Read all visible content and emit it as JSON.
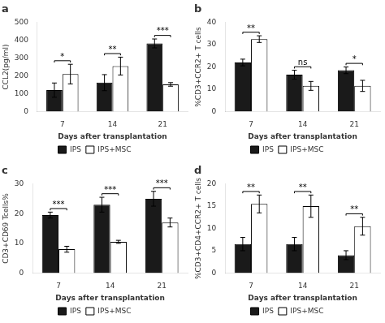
{
  "chart_data": [
    {
      "type": "bar",
      "title": "a",
      "xlabel": "Days after transplantation",
      "ylabel": "CCL2(pg/ml)",
      "categories": [
        "7",
        "14",
        "21"
      ],
      "series": [
        {
          "name": "IPS",
          "color": "#1a1a1a",
          "values": [
            120,
            162,
            382
          ],
          "errors": [
            40,
            45,
            25
          ]
        },
        {
          "name": "IPS+MSC",
          "color": "#ffffff",
          "values": [
            210,
            255,
            152
          ],
          "errors": [
            55,
            50,
            10
          ]
        }
      ],
      "annotations": [
        "*",
        "**",
        "***"
      ],
      "ylim": [
        0,
        500
      ],
      "yticks": [
        0,
        100,
        200,
        300,
        400,
        500
      ],
      "grid": false,
      "legend": "bottom"
    },
    {
      "type": "bar",
      "title": "b",
      "xlabel": "Days after transplantation",
      "ylabel": "%CD3+CCR2+ T cells",
      "categories": [
        "7",
        "14",
        "21"
      ],
      "series": [
        {
          "name": "IPS",
          "color": "#1a1a1a",
          "values": [
            22,
            16.5,
            18.5
          ],
          "errors": [
            1.5,
            2.0,
            1.5
          ]
        },
        {
          "name": "IPS+MSC",
          "color": "#ffffff",
          "values": [
            32.5,
            11.5,
            11.5
          ],
          "errors": [
            1.5,
            2.0,
            2.5
          ]
        }
      ],
      "annotations": [
        "**",
        "ns",
        "*"
      ],
      "ylim": [
        0,
        40
      ],
      "yticks": [
        0,
        10,
        20,
        30,
        40
      ],
      "grid": false,
      "legend": "bottom"
    },
    {
      "type": "bar",
      "title": "c",
      "xlabel": "Days after transplantation",
      "ylabel": "CD3+CD69 Tcells%",
      "categories": [
        "7",
        "14",
        "21"
      ],
      "series": [
        {
          "name": "IPS",
          "color": "#1a1a1a",
          "values": [
            19.5,
            23,
            25
          ],
          "errors": [
            1.0,
            2.5,
            2.5
          ]
        },
        {
          "name": "IPS+MSC",
          "color": "#ffffff",
          "values": [
            8,
            10.5,
            17
          ],
          "errors": [
            1.0,
            0.5,
            1.5
          ]
        }
      ],
      "annotations": [
        "***",
        "***",
        "***"
      ],
      "ylim": [
        0,
        30
      ],
      "yticks": [
        0,
        10,
        20,
        30
      ],
      "grid": false,
      "legend": "bottom"
    },
    {
      "type": "bar",
      "title": "d",
      "xlabel": "Days after transplantation",
      "ylabel": "%CD3+CD4+CCR2+ T cells",
      "categories": [
        "7",
        "14",
        "21"
      ],
      "series": [
        {
          "name": "IPS",
          "color": "#1a1a1a",
          "values": [
            6.5,
            6.5,
            4.0
          ],
          "errors": [
            1.5,
            1.5,
            1.0
          ]
        },
        {
          "name": "IPS+MSC",
          "color": "#ffffff",
          "values": [
            15.5,
            15.0,
            10.5
          ],
          "errors": [
            2.0,
            2.5,
            2.0
          ]
        }
      ],
      "annotations": [
        "**",
        "**",
        "**"
      ],
      "ylim": [
        0,
        20
      ],
      "yticks": [
        0,
        5,
        10,
        15,
        20
      ],
      "grid": false,
      "legend": "bottom"
    }
  ]
}
